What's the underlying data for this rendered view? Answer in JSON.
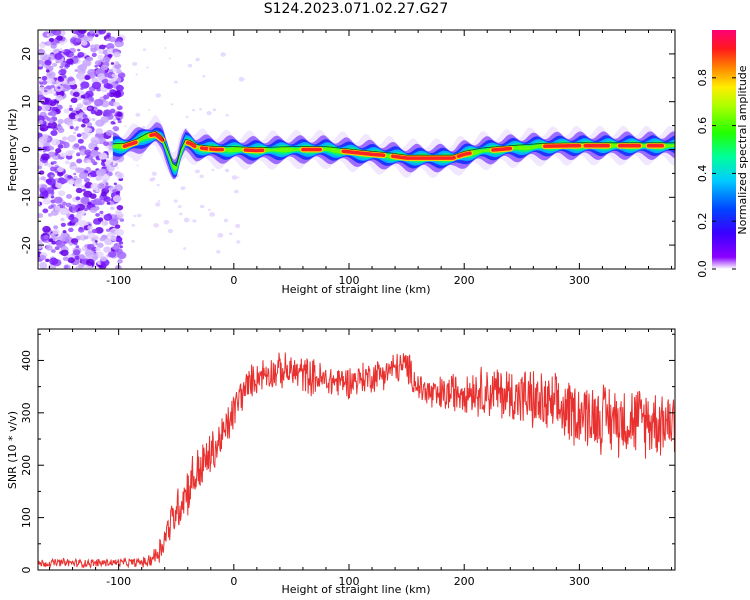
{
  "title": "S124.2023.071.02.27.G27",
  "chart_data": [
    {
      "type": "heatmap",
      "xlabel": "Height of straight line (km)",
      "ylabel": "Frequency (Hz)",
      "xlim": [
        -170,
        383
      ],
      "ylim": [
        -25,
        25
      ],
      "x_ticks": [
        "-100",
        "0",
        "100",
        "200",
        "300"
      ],
      "x_tick_values": [
        -100,
        0,
        100,
        200,
        300
      ],
      "y_ticks": [
        "-20",
        "-10",
        "0",
        "10",
        "20"
      ],
      "y_tick_values": [
        -20,
        -10,
        0,
        10,
        20
      ],
      "colorbar": {
        "label": "Normalized spectral amplitude",
        "range": [
          0,
          1
        ],
        "ticks": [
          "0.0",
          "0.2",
          "0.4",
          "0.6",
          "0.8"
        ],
        "tick_values": [
          0.0,
          0.2,
          0.4,
          0.6,
          0.8
        ]
      },
      "ridge": {
        "x": [
          -105,
          -95,
          -85,
          -75,
          -68,
          -62,
          -57,
          -53,
          -50,
          -46,
          -42,
          -38,
          -33,
          -25,
          -15,
          0,
          20,
          50,
          80,
          100,
          120,
          135,
          150,
          170,
          190,
          200,
          215,
          240,
          270,
          300,
          330,
          360,
          383
        ],
        "y": [
          0.6,
          0.7,
          1.5,
          2.8,
          3.2,
          2.0,
          -1.0,
          -3.5,
          -4.0,
          -0.5,
          1.5,
          1.3,
          0.5,
          0.2,
          0.0,
          0.0,
          -0.2,
          0.0,
          0.0,
          -0.5,
          -1.0,
          -1.3,
          -1.8,
          -1.8,
          -1.8,
          -1.0,
          -0.3,
          0.2,
          0.7,
          0.8,
          0.8,
          0.8,
          0.8
        ]
      },
      "noise_region": [
        -170,
        -105
      ]
    },
    {
      "type": "line",
      "xlabel": "Height of straight line (km)",
      "ylabel": "SNR (10 * v/v)",
      "xlim": [
        -170,
        383
      ],
      "ylim": [
        0,
        460
      ],
      "x_ticks": [
        "-100",
        "0",
        "100",
        "200",
        "300"
      ],
      "x_tick_values": [
        -100,
        0,
        100,
        200,
        300
      ],
      "y_ticks": [
        "0",
        "100",
        "200",
        "300",
        "400"
      ],
      "y_tick_values": [
        0,
        100,
        200,
        300,
        400
      ],
      "series": [
        {
          "color": "#e8312f",
          "x": [
            -170,
            -150,
            -130,
            -110,
            -90,
            -75,
            -65,
            -55,
            -45,
            -35,
            -25,
            -15,
            -5,
            5,
            15,
            25,
            40,
            60,
            80,
            100,
            120,
            140,
            150,
            160,
            175,
            200,
            225,
            250,
            275,
            300,
            325,
            350,
            383
          ],
          "y": [
            12,
            14,
            13,
            14,
            14,
            15,
            35,
            90,
            135,
            175,
            205,
            235,
            275,
            330,
            360,
            375,
            380,
            375,
            360,
            360,
            370,
            385,
            390,
            350,
            330,
            345,
            340,
            330,
            310,
            300,
            290,
            285,
            285
          ],
          "spread": [
            8,
            8,
            8,
            8,
            8,
            10,
            25,
            35,
            45,
            50,
            45,
            40,
            40,
            35,
            30,
            30,
            32,
            35,
            32,
            30,
            30,
            30,
            30,
            30,
            35,
            40,
            50,
            55,
            60,
            60,
            65,
            65,
            65
          ]
        }
      ]
    }
  ]
}
